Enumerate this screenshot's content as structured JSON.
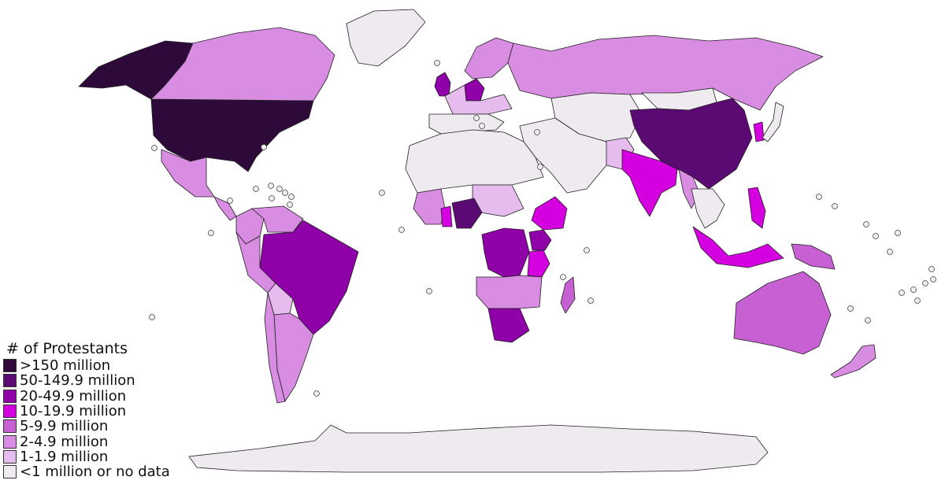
{
  "legend": {
    "title": "# of Protestants",
    "items": [
      {
        "label": ">150 million",
        "color": "#2e0a3a"
      },
      {
        "label": "50-149.9 million",
        "color": "#5c0a73"
      },
      {
        "label": "20-49.9 million",
        "color": "#8f00a8"
      },
      {
        "label": "10-19.9 million",
        "color": "#d400e0"
      },
      {
        "label": "5-9.9 million",
        "color": "#c760d3"
      },
      {
        "label": "2-4.9 million",
        "color": "#d88ce2"
      },
      {
        "label": "1-1.9 million",
        "color": "#e6bcee"
      },
      {
        "label": "<1 million or no data",
        "color": "#eeeaf0"
      }
    ]
  },
  "regions": [
    {
      "name": "alaska",
      "cat": 0
    },
    {
      "name": "united-states",
      "cat": 0
    },
    {
      "name": "canada",
      "cat": 5
    },
    {
      "name": "greenland",
      "cat": 7
    },
    {
      "name": "mexico",
      "cat": 5
    },
    {
      "name": "central-america",
      "cat": 5
    },
    {
      "name": "colombia",
      "cat": 5
    },
    {
      "name": "venezuela",
      "cat": 5
    },
    {
      "name": "brazil",
      "cat": 2
    },
    {
      "name": "peru",
      "cat": 5
    },
    {
      "name": "bolivia",
      "cat": 6
    },
    {
      "name": "argentina",
      "cat": 5
    },
    {
      "name": "chile",
      "cat": 5
    },
    {
      "name": "russia",
      "cat": 5
    },
    {
      "name": "united-kingdom",
      "cat": 2
    },
    {
      "name": "germany",
      "cat": 2
    },
    {
      "name": "scandinavia",
      "cat": 5
    },
    {
      "name": "central-europe",
      "cat": 6
    },
    {
      "name": "southern-europe",
      "cat": 7
    },
    {
      "name": "central-asia",
      "cat": 7
    },
    {
      "name": "mongolia",
      "cat": 7
    },
    {
      "name": "china",
      "cat": 1
    },
    {
      "name": "india",
      "cat": 3
    },
    {
      "name": "pakistan",
      "cat": 6
    },
    {
      "name": "myanmar",
      "cat": 5
    },
    {
      "name": "korea",
      "cat": 3
    },
    {
      "name": "japan",
      "cat": 7
    },
    {
      "name": "southeast-asia",
      "cat": 7
    },
    {
      "name": "philippines",
      "cat": 3
    },
    {
      "name": "indonesia",
      "cat": 3
    },
    {
      "name": "papua",
      "cat": 4
    },
    {
      "name": "australia",
      "cat": 4
    },
    {
      "name": "new-zealand",
      "cat": 5
    },
    {
      "name": "north-africa",
      "cat": 7
    },
    {
      "name": "middle-east",
      "cat": 7
    },
    {
      "name": "sahel",
      "cat": 6
    },
    {
      "name": "west-africa",
      "cat": 5
    },
    {
      "name": "ghana",
      "cat": 3
    },
    {
      "name": "nigeria",
      "cat": 1
    },
    {
      "name": "ethiopia",
      "cat": 3
    },
    {
      "name": "dr-congo",
      "cat": 2
    },
    {
      "name": "east-africa",
      "cat": 2
    },
    {
      "name": "tanzania",
      "cat": 3
    },
    {
      "name": "southern-africa",
      "cat": 5
    },
    {
      "name": "south-africa",
      "cat": 2
    },
    {
      "name": "madagascar",
      "cat": 4
    },
    {
      "name": "antarctica",
      "cat": 7
    }
  ]
}
